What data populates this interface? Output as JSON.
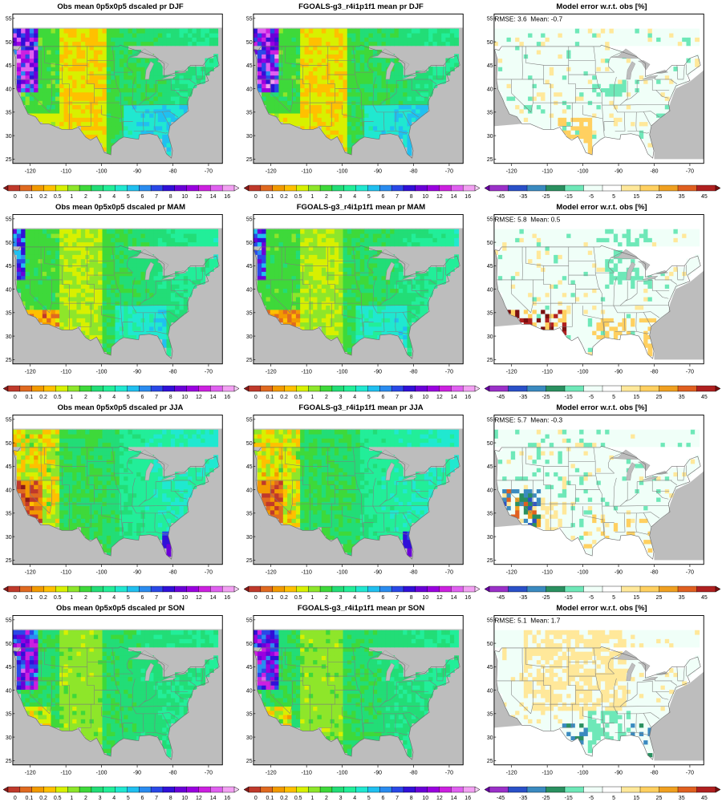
{
  "panels": [
    {
      "title": "Obs mean 0p5x0p5 dscaled pr DJF",
      "kind": "obs",
      "season": "DJF"
    },
    {
      "title": "FGOALS-g3_r4i1p1f1 mean pr DJF",
      "kind": "model",
      "season": "DJF"
    },
    {
      "title": "Model error w.r.t. obs [%]",
      "kind": "error",
      "season": "DJF",
      "stats": "RMSE: 3.6  Mean: -0.7"
    },
    {
      "title": "Obs mean 0p5x0p5 dscaled pr MAM",
      "kind": "obs",
      "season": "MAM"
    },
    {
      "title": "FGOALS-g3_r4i1p1f1 mean pr MAM",
      "kind": "model",
      "season": "MAM"
    },
    {
      "title": "Model error w.r.t. obs [%]",
      "kind": "error",
      "season": "MAM",
      "stats": "RMSE: 5.8  Mean: 0.5"
    },
    {
      "title": "Obs mean 0p5x0p5 dscaled pr JJA",
      "kind": "obs",
      "season": "JJA"
    },
    {
      "title": "FGOALS-g3_r4i1p1f1 mean pr JJA",
      "kind": "model",
      "season": "JJA"
    },
    {
      "title": "Model error w.r.t. obs [%]",
      "kind": "error",
      "season": "JJA",
      "stats": "RMSE: 5.7  Mean: -0.3"
    },
    {
      "title": "Obs mean 0p5x0p5 dscaled pr SON",
      "kind": "obs",
      "season": "SON"
    },
    {
      "title": "FGOALS-g3_r4i1p1f1 mean pr SON",
      "kind": "model",
      "season": "SON"
    },
    {
      "title": "Model error w.r.t. obs [%]",
      "kind": "error",
      "season": "SON",
      "stats": "RMSE: 5.1  Mean: 1.7"
    }
  ],
  "axes": {
    "lon_ticks": [
      "-120",
      "-110",
      "-100",
      "-90",
      "-80",
      "-70"
    ],
    "lat_ticks": [
      "25",
      "30",
      "35",
      "40",
      "45",
      "50",
      "55"
    ],
    "lon_range": [
      -125,
      -66
    ],
    "lat_range": [
      24,
      56
    ]
  },
  "precip_colorbar": {
    "labels": [
      "0",
      "0.1",
      "0.2",
      "0.5",
      "1",
      "2",
      "3",
      "4",
      "5",
      "6",
      "7",
      "8",
      "10",
      "12",
      "14",
      "16"
    ],
    "colors": [
      "#8b1a1a",
      "#c0392b",
      "#e06a20",
      "#f29a00",
      "#ffc000",
      "#d8f000",
      "#8ee62a",
      "#3ed93a",
      "#22dd77",
      "#22ee99",
      "#20e8d0",
      "#20c0f0",
      "#2a8cf0",
      "#2a48e8",
      "#3010d8",
      "#6a00d8",
      "#9a00e0",
      "#cc20e0",
      "#e060f0",
      "#f2a0f2",
      "#f8d0f8"
    ]
  },
  "error_colorbar": {
    "labels": [
      "-45",
      "-35",
      "-25",
      "-15",
      "-5",
      "5",
      "15",
      "25",
      "35",
      "45"
    ],
    "colors": [
      "#6a00a8",
      "#9a30c8",
      "#2a50c8",
      "#3a8ac0",
      "#2a9060",
      "#6ee8b8",
      "#f0fff8",
      "#ffffff",
      "#ffe89a",
      "#ffd060",
      "#f0a020",
      "#e06020",
      "#b02020",
      "#7a1010"
    ]
  },
  "colors": {
    "land_gray": "#bdbdbd",
    "border": "#8a8a8a",
    "ocean_obs": "#bdbdbd"
  }
}
